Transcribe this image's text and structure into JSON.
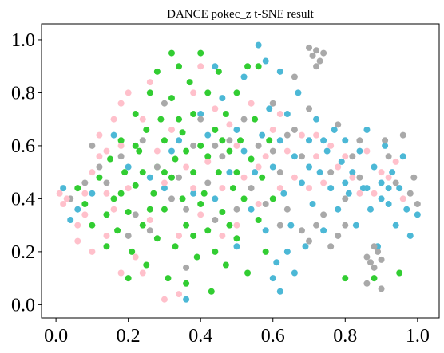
{
  "chart_data": {
    "type": "scatter",
    "title": "DANCE pokec_z t-SNE result",
    "xlabel": "",
    "ylabel": "",
    "xlim": [
      -0.04,
      1.06
    ],
    "ylim": [
      -0.05,
      1.06
    ],
    "x_ticks": [
      0.0,
      0.2,
      0.4,
      0.6,
      0.8,
      1.0
    ],
    "y_ticks": [
      0.0,
      0.2,
      0.4,
      0.6,
      0.8,
      1.0
    ],
    "x_tick_labels": [
      "0.0",
      "0.2",
      "0.4",
      "0.6",
      "0.8",
      "1.0"
    ],
    "y_tick_labels": [
      "0.0",
      "0.2",
      "0.4",
      "0.6",
      "0.8",
      "1.0"
    ],
    "grid": false,
    "legend": "none",
    "point_count_note": "",
    "series": [
      {
        "color": "#32cd32",
        "points": [
          [
            0.06,
            0.44
          ],
          [
            0.08,
            0.38
          ],
          [
            0.1,
            0.3
          ],
          [
            0.12,
            0.48
          ],
          [
            0.14,
            0.22
          ],
          [
            0.15,
            0.55
          ],
          [
            0.16,
            0.4
          ],
          [
            0.17,
            0.28
          ],
          [
            0.18,
            0.62
          ],
          [
            0.19,
            0.5
          ],
          [
            0.2,
            0.35
          ],
          [
            0.21,
            0.2
          ],
          [
            0.22,
            0.72
          ],
          [
            0.22,
            0.45
          ],
          [
            0.23,
            0.58
          ],
          [
            0.24,
            0.3
          ],
          [
            0.25,
            0.15
          ],
          [
            0.25,
            0.66
          ],
          [
            0.26,
            0.8
          ],
          [
            0.27,
            0.42
          ],
          [
            0.28,
            0.52
          ],
          [
            0.28,
            0.25
          ],
          [
            0.29,
            0.7
          ],
          [
            0.3,
            0.62
          ],
          [
            0.3,
            0.36
          ],
          [
            0.31,
            0.1
          ],
          [
            0.32,
            0.48
          ],
          [
            0.32,
            0.78
          ],
          [
            0.33,
            0.55
          ],
          [
            0.33,
            0.22
          ],
          [
            0.34,
            0.9
          ],
          [
            0.35,
            0.4
          ],
          [
            0.35,
            0.65
          ],
          [
            0.36,
            0.3
          ],
          [
            0.36,
            0.08
          ],
          [
            0.37,
            0.84
          ],
          [
            0.38,
            0.5
          ],
          [
            0.38,
            0.72
          ],
          [
            0.39,
            0.18
          ],
          [
            0.4,
            0.6
          ],
          [
            0.4,
            0.95
          ],
          [
            0.41,
            0.42
          ],
          [
            0.42,
            0.8
          ],
          [
            0.42,
            0.28
          ],
          [
            0.43,
            0.05
          ],
          [
            0.44,
            0.66
          ],
          [
            0.45,
            0.5
          ],
          [
            0.45,
            0.88
          ],
          [
            0.46,
            0.35
          ],
          [
            0.47,
            0.72
          ],
          [
            0.47,
            0.15
          ],
          [
            0.48,
            0.58
          ],
          [
            0.49,
            0.44
          ],
          [
            0.5,
            0.8
          ],
          [
            0.5,
            0.25
          ],
          [
            0.51,
            0.62
          ],
          [
            0.52,
            0.4
          ],
          [
            0.53,
            0.9
          ],
          [
            0.53,
            0.12
          ],
          [
            0.54,
            0.55
          ],
          [
            0.55,
            0.7
          ],
          [
            0.56,
            0.32
          ],
          [
            0.57,
            0.48
          ],
          [
            0.58,
            0.2
          ],
          [
            0.59,
            0.62
          ],
          [
            0.6,
            0.4
          ],
          [
            0.28,
            0.88
          ],
          [
            0.32,
            0.95
          ],
          [
            0.24,
            0.5
          ],
          [
            0.2,
            0.1
          ],
          [
            0.44,
            0.2
          ],
          [
            0.36,
            0.58
          ],
          [
            0.26,
            0.36
          ],
          [
            0.34,
            0.7
          ],
          [
            0.4,
            0.38
          ],
          [
            0.46,
            0.62
          ],
          [
            0.18,
            0.42
          ],
          [
            0.14,
            0.34
          ],
          [
            0.3,
            0.5
          ],
          [
            0.5,
            0.5
          ],
          [
            0.42,
            0.56
          ],
          [
            0.38,
            0.26
          ],
          [
            0.48,
            0.3
          ],
          [
            0.22,
            0.6
          ],
          [
            0.56,
            0.9
          ],
          [
            0.8,
            0.1
          ],
          [
            0.88,
            0.1
          ],
          [
            0.95,
            0.12
          ]
        ]
      },
      {
        "color": "#4cb8d6",
        "points": [
          [
            0.02,
            0.44
          ],
          [
            0.04,
            0.32
          ],
          [
            0.06,
            0.36
          ],
          [
            0.1,
            0.42
          ],
          [
            0.16,
            0.64
          ],
          [
            0.2,
            0.52
          ],
          [
            0.26,
            0.48
          ],
          [
            0.3,
            0.44
          ],
          [
            0.34,
            0.62
          ],
          [
            0.38,
            0.42
          ],
          [
            0.42,
            0.64
          ],
          [
            0.44,
            0.4
          ],
          [
            0.46,
            0.78
          ],
          [
            0.48,
            0.5
          ],
          [
            0.5,
            0.66
          ],
          [
            0.52,
            0.86
          ],
          [
            0.54,
            0.36
          ],
          [
            0.55,
            0.5
          ],
          [
            0.56,
            0.98
          ],
          [
            0.57,
            0.64
          ],
          [
            0.58,
            0.28
          ],
          [
            0.59,
            0.74
          ],
          [
            0.6,
            0.52
          ],
          [
            0.61,
            0.16
          ],
          [
            0.62,
            0.62
          ],
          [
            0.63,
            0.42
          ],
          [
            0.64,
            0.72
          ],
          [
            0.65,
            0.3
          ],
          [
            0.66,
            0.56
          ],
          [
            0.67,
            0.8
          ],
          [
            0.68,
            0.46
          ],
          [
            0.69,
            0.22
          ],
          [
            0.7,
            0.62
          ],
          [
            0.71,
            0.38
          ],
          [
            0.72,
            0.7
          ],
          [
            0.73,
            0.5
          ],
          [
            0.74,
            0.28
          ],
          [
            0.75,
            0.58
          ],
          [
            0.76,
            0.44
          ],
          [
            0.77,
            0.66
          ],
          [
            0.78,
            0.36
          ],
          [
            0.79,
            0.54
          ],
          [
            0.8,
            0.62
          ],
          [
            0.81,
            0.42
          ],
          [
            0.82,
            0.5
          ],
          [
            0.83,
            0.3
          ],
          [
            0.84,
            0.58
          ],
          [
            0.85,
            0.44
          ],
          [
            0.86,
            0.66
          ],
          [
            0.87,
            0.36
          ],
          [
            0.88,
            0.52
          ],
          [
            0.89,
            0.22
          ],
          [
            0.9,
            0.46
          ],
          [
            0.91,
            0.6
          ],
          [
            0.92,
            0.38
          ],
          [
            0.93,
            0.5
          ],
          [
            0.94,
            0.3
          ],
          [
            0.95,
            0.44
          ],
          [
            0.96,
            0.56
          ],
          [
            0.97,
            0.36
          ],
          [
            0.98,
            0.26
          ],
          [
            1.0,
            0.34
          ],
          [
            0.6,
            0.1
          ],
          [
            0.62,
            0.05
          ],
          [
            0.66,
            0.12
          ],
          [
            0.64,
            0.2
          ],
          [
            0.58,
            0.92
          ],
          [
            0.62,
            0.88
          ],
          [
            0.7,
            0.52
          ],
          [
            0.74,
            0.62
          ],
          [
            0.86,
            0.44
          ],
          [
            0.9,
            0.4
          ],
          [
            0.92,
            0.44
          ],
          [
            0.8,
            0.46
          ],
          [
            0.52,
            0.58
          ],
          [
            0.4,
            0.72
          ],
          [
            0.32,
            0.58
          ],
          [
            0.44,
            0.9
          ],
          [
            0.5,
            0.22
          ],
          [
            0.36,
            0.02
          ]
        ]
      },
      {
        "color": "#a9a9a9",
        "points": [
          [
            0.04,
            0.4
          ],
          [
            0.1,
            0.6
          ],
          [
            0.14,
            0.46
          ],
          [
            0.2,
            0.26
          ],
          [
            0.24,
            0.62
          ],
          [
            0.26,
            0.28
          ],
          [
            0.3,
            0.76
          ],
          [
            0.32,
            0.4
          ],
          [
            0.34,
            0.48
          ],
          [
            0.36,
            0.14
          ],
          [
            0.4,
            0.7
          ],
          [
            0.42,
            0.46
          ],
          [
            0.44,
            0.32
          ],
          [
            0.46,
            0.56
          ],
          [
            0.5,
            0.36
          ],
          [
            0.52,
            0.7
          ],
          [
            0.54,
            0.44
          ],
          [
            0.56,
            0.6
          ],
          [
            0.58,
            0.38
          ],
          [
            0.6,
            0.76
          ],
          [
            0.62,
            0.5
          ],
          [
            0.64,
            0.36
          ],
          [
            0.66,
            0.66
          ],
          [
            0.68,
            0.56
          ],
          [
            0.7,
            0.74
          ],
          [
            0.71,
            0.94
          ],
          [
            0.72,
            0.96
          ],
          [
            0.73,
            0.92
          ],
          [
            0.74,
            0.95
          ],
          [
            0.72,
            0.9
          ],
          [
            0.7,
            0.97
          ],
          [
            0.66,
            0.86
          ],
          [
            0.68,
            0.28
          ],
          [
            0.7,
            0.24
          ],
          [
            0.72,
            0.3
          ],
          [
            0.74,
            0.34
          ],
          [
            0.76,
            0.22
          ],
          [
            0.78,
            0.26
          ],
          [
            0.8,
            0.3
          ],
          [
            0.82,
            0.56
          ],
          [
            0.84,
            0.48
          ],
          [
            0.86,
            0.18
          ],
          [
            0.87,
            0.16
          ],
          [
            0.88,
            0.14
          ],
          [
            0.89,
            0.2
          ],
          [
            0.9,
            0.17
          ],
          [
            0.88,
            0.22
          ],
          [
            0.91,
            0.62
          ],
          [
            0.92,
            0.56
          ],
          [
            0.94,
            0.46
          ],
          [
            0.96,
            0.64
          ],
          [
            0.98,
            0.42
          ],
          [
            1.0,
            0.38
          ],
          [
            0.99,
            0.48
          ],
          [
            0.86,
            0.08
          ],
          [
            0.9,
            0.06
          ],
          [
            0.84,
            0.62
          ],
          [
            0.78,
            0.68
          ],
          [
            0.62,
            0.3
          ],
          [
            0.48,
            0.62
          ],
          [
            0.38,
            0.6
          ],
          [
            0.28,
            0.52
          ],
          [
            0.22,
            0.34
          ],
          [
            0.18,
            0.56
          ],
          [
            0.12,
            0.52
          ],
          [
            0.08,
            0.46
          ],
          [
            0.6,
            0.58
          ],
          [
            0.64,
            0.64
          ],
          [
            0.76,
            0.5
          ],
          [
            0.8,
            0.4
          ],
          [
            0.44,
            0.6
          ],
          [
            0.36,
            0.36
          ]
        ]
      },
      {
        "color": "#ffc0cb",
        "points": [
          [
            0.01,
            0.42
          ],
          [
            0.02,
            0.38
          ],
          [
            0.03,
            0.4
          ],
          [
            0.06,
            0.24
          ],
          [
            0.08,
            0.34
          ],
          [
            0.1,
            0.5
          ],
          [
            0.12,
            0.56
          ],
          [
            0.14,
            0.26
          ],
          [
            0.16,
            0.36
          ],
          [
            0.18,
            0.6
          ],
          [
            0.2,
            0.44
          ],
          [
            0.22,
            0.18
          ],
          [
            0.24,
            0.7
          ],
          [
            0.26,
            0.32
          ],
          [
            0.28,
            0.58
          ],
          [
            0.3,
            0.46
          ],
          [
            0.32,
            0.66
          ],
          [
            0.34,
            0.26
          ],
          [
            0.36,
            0.52
          ],
          [
            0.38,
            0.8
          ],
          [
            0.4,
            0.34
          ],
          [
            0.42,
            0.54
          ],
          [
            0.44,
            0.74
          ],
          [
            0.46,
            0.44
          ],
          [
            0.48,
            0.68
          ],
          [
            0.5,
            0.3
          ],
          [
            0.52,
            0.48
          ],
          [
            0.54,
            0.76
          ],
          [
            0.56,
            0.38
          ],
          [
            0.58,
            0.56
          ],
          [
            0.6,
            0.66
          ],
          [
            0.62,
            0.44
          ],
          [
            0.64,
            0.58
          ],
          [
            0.66,
            0.48
          ],
          [
            0.68,
            0.64
          ],
          [
            0.7,
            0.44
          ],
          [
            0.72,
            0.56
          ],
          [
            0.74,
            0.46
          ],
          [
            0.76,
            0.6
          ],
          [
            0.78,
            0.52
          ],
          [
            0.8,
            0.56
          ],
          [
            0.82,
            0.48
          ],
          [
            0.84,
            0.42
          ],
          [
            0.86,
            0.58
          ],
          [
            0.88,
            0.42
          ],
          [
            0.9,
            0.5
          ],
          [
            0.92,
            0.48
          ],
          [
            0.94,
            0.54
          ],
          [
            0.96,
            0.4
          ],
          [
            0.3,
            0.02
          ],
          [
            0.34,
            0.04
          ],
          [
            0.2,
            0.8
          ],
          [
            0.26,
            0.84
          ],
          [
            0.18,
            0.76
          ],
          [
            0.16,
            0.7
          ],
          [
            0.14,
            0.58
          ],
          [
            0.12,
            0.64
          ],
          [
            0.1,
            0.2
          ],
          [
            0.18,
            0.12
          ],
          [
            0.24,
            0.12
          ],
          [
            0.5,
            0.6
          ],
          [
            0.56,
            0.52
          ],
          [
            0.4,
            0.9
          ],
          [
            0.62,
            0.72
          ],
          [
            0.72,
            0.64
          ],
          [
            0.06,
            0.3
          ],
          [
            0.08,
            0.42
          ],
          [
            0.14,
            0.42
          ],
          [
            0.38,
            0.44
          ],
          [
            0.46,
            0.26
          ]
        ]
      }
    ]
  }
}
